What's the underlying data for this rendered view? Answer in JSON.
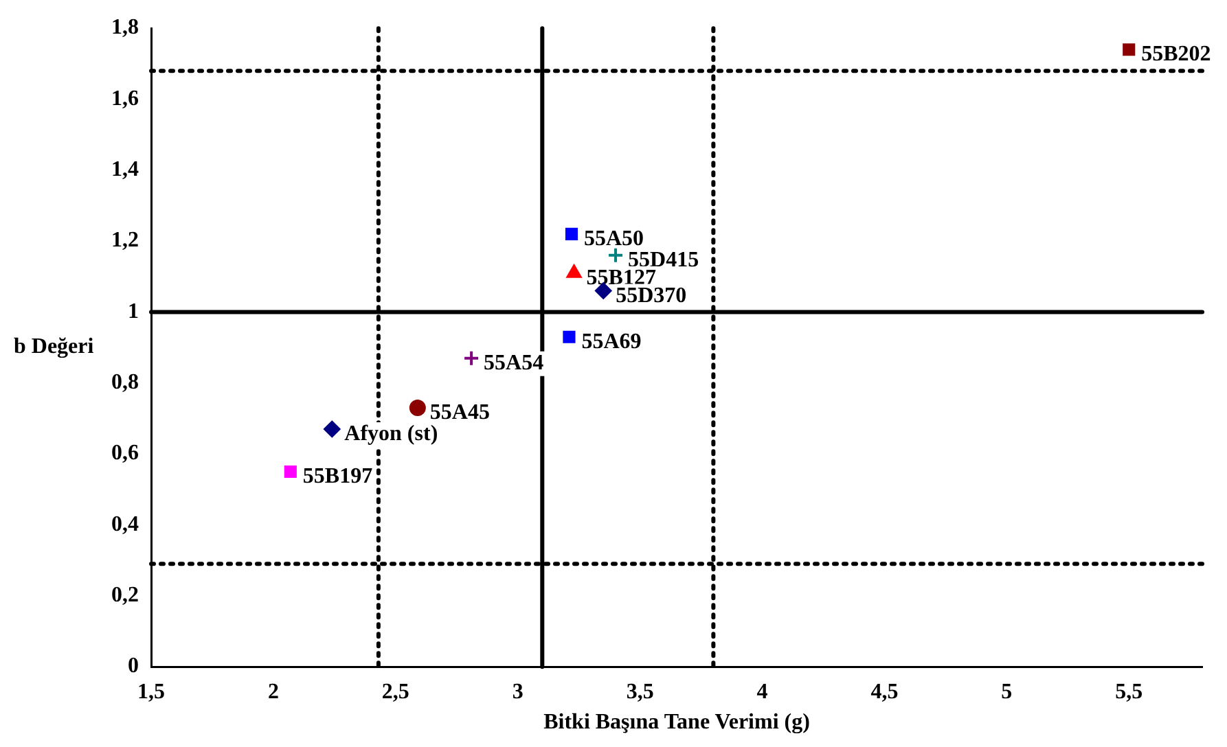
{
  "chart_data": {
    "type": "scatter",
    "xlabel": "Bitki Başına Tane Verimi (g)",
    "ylabel": "b Değeri",
    "xlim": [
      1.5,
      5.8
    ],
    "xticks": [
      {
        "value": 1.5,
        "label": "1,5"
      },
      2,
      {
        "value": 2.5,
        "label": "2,5"
      },
      3,
      {
        "value": 3.5,
        "label": "3,5"
      },
      4,
      {
        "value": 4.5,
        "label": "4,5"
      },
      5,
      {
        "value": 5.5,
        "label": "5,5"
      }
    ],
    "ylim": [
      0,
      1.8
    ],
    "yticks": [
      0,
      {
        "value": 0.2,
        "label": "0,2"
      },
      {
        "value": 0.4,
        "label": "0,4"
      },
      {
        "value": 0.6,
        "label": "0,6"
      },
      {
        "value": 0.8,
        "label": "0,8"
      },
      1,
      {
        "value": 1.2,
        "label": "1,2"
      },
      {
        "value": 1.4,
        "label": "1,4"
      },
      {
        "value": 1.6,
        "label": "1,6"
      },
      {
        "value": 1.8,
        "label": "1,8"
      }
    ],
    "grid": false,
    "legend": false,
    "series": [
      {
        "name": "55B202",
        "color": "#8b0000",
        "marker": "square",
        "x": [
          5.5
        ],
        "values": [
          1.74
        ]
      },
      {
        "name": "55A50",
        "color": "#0000ff",
        "marker": "square",
        "x": [
          3.22
        ],
        "values": [
          1.22
        ]
      },
      {
        "name": "55D415",
        "color": "#008080",
        "marker": "cross",
        "x": [
          3.4
        ],
        "values": [
          1.16
        ]
      },
      {
        "name": "55B127",
        "color": "#ff0000",
        "marker": "triangle",
        "x": [
          3.23
        ],
        "values": [
          1.11
        ]
      },
      {
        "name": "55D370",
        "color": "#000080",
        "marker": "diamond",
        "x": [
          3.35
        ],
        "values": [
          1.06
        ]
      },
      {
        "name": "55A69",
        "color": "#0000ff",
        "marker": "square",
        "x": [
          3.21
        ],
        "values": [
          0.93
        ]
      },
      {
        "name": "55A54",
        "color": "#800080",
        "marker": "cross",
        "x": [
          2.81
        ],
        "values": [
          0.87
        ]
      },
      {
        "name": "55A45",
        "color": "#8b0000",
        "marker": "circle",
        "x": [
          2.59
        ],
        "values": [
          0.73
        ]
      },
      {
        "name": "Afyon (st)",
        "color": "#000080",
        "marker": "diamond",
        "x": [
          2.24
        ],
        "values": [
          0.67
        ]
      },
      {
        "name": "55B197",
        "color": "#ff00ff",
        "marker": "square",
        "x": [
          2.07
        ],
        "values": [
          0.55
        ]
      }
    ],
    "ref_lines": [
      {
        "axis": "x",
        "value": 3.1,
        "line_style": "solid",
        "color": "#000000"
      },
      {
        "axis": "x",
        "value": 2.43,
        "line_style": "dotted",
        "color": "#000000"
      },
      {
        "axis": "x",
        "value": 3.8,
        "line_style": "dotted",
        "color": "#000000"
      },
      {
        "axis": "y",
        "value": 1,
        "line_style": "solid",
        "color": "#000000"
      },
      {
        "axis": "y",
        "value": 1.68,
        "line_style": "dotted",
        "color": "#000000"
      },
      {
        "axis": "y",
        "value": 0.29,
        "line_style": "dotted",
        "color": "#000000"
      }
    ]
  }
}
